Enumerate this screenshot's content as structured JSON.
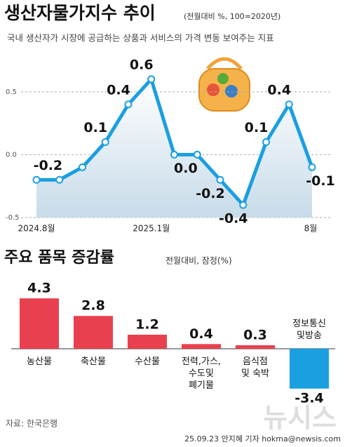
{
  "chart_data": [
    {
      "type": "line",
      "title": "생산자물가지수 추이",
      "subtitle": "(전월대비 %, 100=2020년)",
      "description": "국내 생산자가 시장에 공급하는 상품과 서비스의 가격 변동 보여주는 지표",
      "categories": [
        "2024.8월",
        null,
        null,
        null,
        null,
        "2025.1월",
        null,
        null,
        null,
        null,
        null,
        null,
        "8월"
      ],
      "values": [
        -0.2,
        -0.2,
        -0.1,
        0.1,
        0.4,
        0.6,
        0.0,
        0.0,
        -0.2,
        -0.4,
        0.1,
        0.4,
        -0.1
      ],
      "value_labels": [
        "-0.2",
        null,
        null,
        "0.1",
        "0.4",
        "0.6",
        "0.0",
        null,
        "-0.2",
        "-0.4",
        "0.1",
        "0.4",
        "-0.1"
      ],
      "color": "#1a9fe0",
      "ylim": [
        -0.5,
        0.7
      ],
      "yticks": [
        0.5,
        {
          "value": 0,
          "label": "0.0"
        },
        -0.5
      ],
      "grid": true
    },
    {
      "type": "bar",
      "title": "주요 품목 증감률",
      "subtitle": "전월대비, 잠정(%)",
      "categories": [
        "농산물",
        "축산물",
        "수산물",
        "전력,가스,\n수도및\n폐기물",
        "음식점\n및 숙박",
        "정보통신\n및방송"
      ],
      "values": [
        4.3,
        2.8,
        1.2,
        0.4,
        0.3,
        -3.4
      ],
      "colors": [
        "#e8404e",
        "#e8404e",
        "#e8404e",
        "#e8404e",
        "#e8404e",
        "#1a9fe0"
      ]
    }
  ],
  "footer": {
    "source": "자료: 한국은행",
    "credit": "25.09.23 안지혜 기자 hokma@newsis.com",
    "watermark": "뉴시스"
  }
}
